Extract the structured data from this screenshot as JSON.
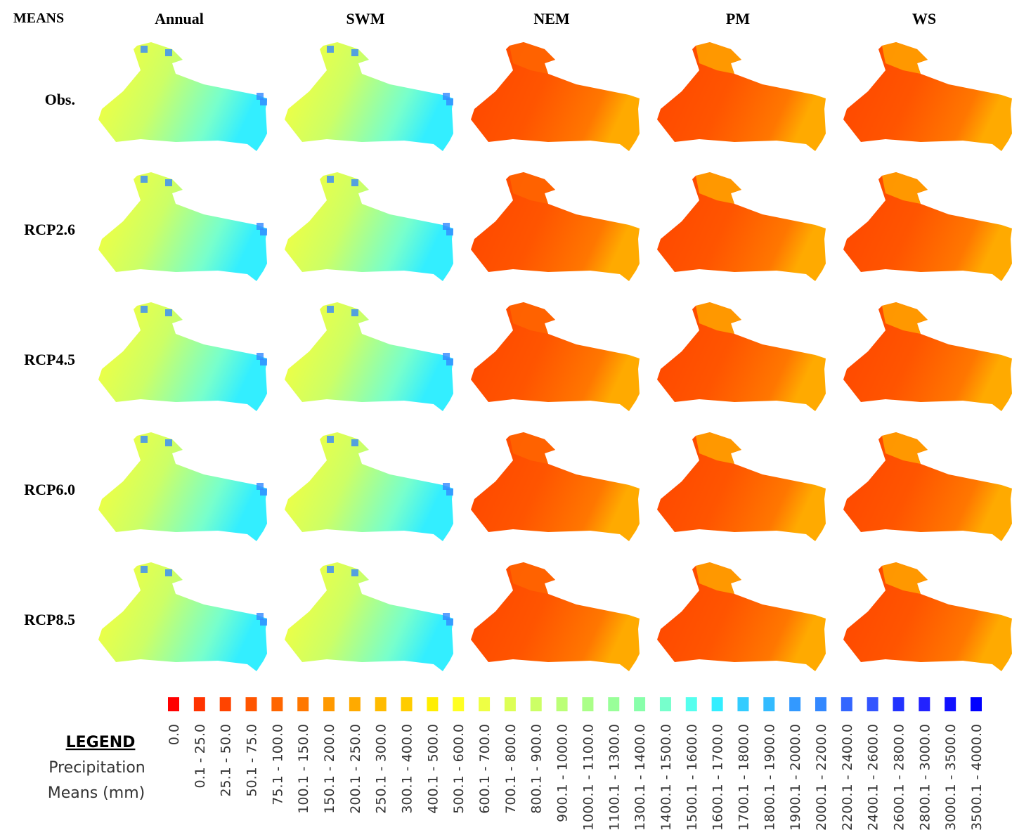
{
  "header": {
    "title": "MEANS"
  },
  "columns": [
    "Annual",
    "SWM",
    "NEM",
    "PM",
    "WS"
  ],
  "rows": [
    "Obs.",
    "RCP2.6",
    "RCP4.5",
    "RCP6.0",
    "RCP8.5"
  ],
  "legend": {
    "title": "LEGEND",
    "subtitle": [
      "Precipitation",
      "Means (mm)"
    ],
    "items": [
      {
        "label": "0.0",
        "color": "#ff0000"
      },
      {
        "label": "0.1 - 25.0",
        "color": "#ff3300"
      },
      {
        "label": "25.1 - 50.0",
        "color": "#ff4400"
      },
      {
        "label": "50.1 - 75.0",
        "color": "#ff5500"
      },
      {
        "label": "75.1 - 100.0",
        "color": "#ff6600"
      },
      {
        "label": "100.1 - 150.0",
        "color": "#ff7700"
      },
      {
        "label": "150.1 - 200.0",
        "color": "#ff9900"
      },
      {
        "label": "200.1 - 250.0",
        "color": "#ffaa00"
      },
      {
        "label": "250.1 - 300.0",
        "color": "#ffbb00"
      },
      {
        "label": "300.1 - 400.0",
        "color": "#ffcc00"
      },
      {
        "label": "400.1 - 500.0",
        "color": "#ffee00"
      },
      {
        "label": "500.1 - 600.0",
        "color": "#ffff22"
      },
      {
        "label": "600.1 - 700.0",
        "color": "#eeff44"
      },
      {
        "label": "700.1 - 800.0",
        "color": "#ddff55"
      },
      {
        "label": "800.1 - 900.0",
        "color": "#ccff66"
      },
      {
        "label": "900.1 - 1000.0",
        "color": "#bbff77"
      },
      {
        "label": "1000.1 - 1100.0",
        "color": "#aaff88"
      },
      {
        "label": "1100.1 - 1300.0",
        "color": "#99ff99"
      },
      {
        "label": "1300.1 - 1400.0",
        "color": "#88ffaa"
      },
      {
        "label": "1400.1 - 1500.0",
        "color": "#77ffcc"
      },
      {
        "label": "1500.1 - 1600.0",
        "color": "#55ffee"
      },
      {
        "label": "1600.1 - 1700.0",
        "color": "#33eeff"
      },
      {
        "label": "1700.1 - 1800.0",
        "color": "#33ccff"
      },
      {
        "label": "1800.1 - 1900.0",
        "color": "#33bbff"
      },
      {
        "label": "1900.1 - 2000.0",
        "color": "#3399ff"
      },
      {
        "label": "2000.1 - 2200.0",
        "color": "#3388ff"
      },
      {
        "label": "2200.1 - 2400.0",
        "color": "#3366ff"
      },
      {
        "label": "2400.1 - 2600.0",
        "color": "#3355ff"
      },
      {
        "label": "2600.1 - 2800.0",
        "color": "#2233ff"
      },
      {
        "label": "2800.1 - 3000.0",
        "color": "#2222ff"
      },
      {
        "label": "3000.1 - 3500.0",
        "color": "#1111ff"
      },
      {
        "label": "3500.1 - 4000.0",
        "color": "#0000ff"
      }
    ]
  }
}
